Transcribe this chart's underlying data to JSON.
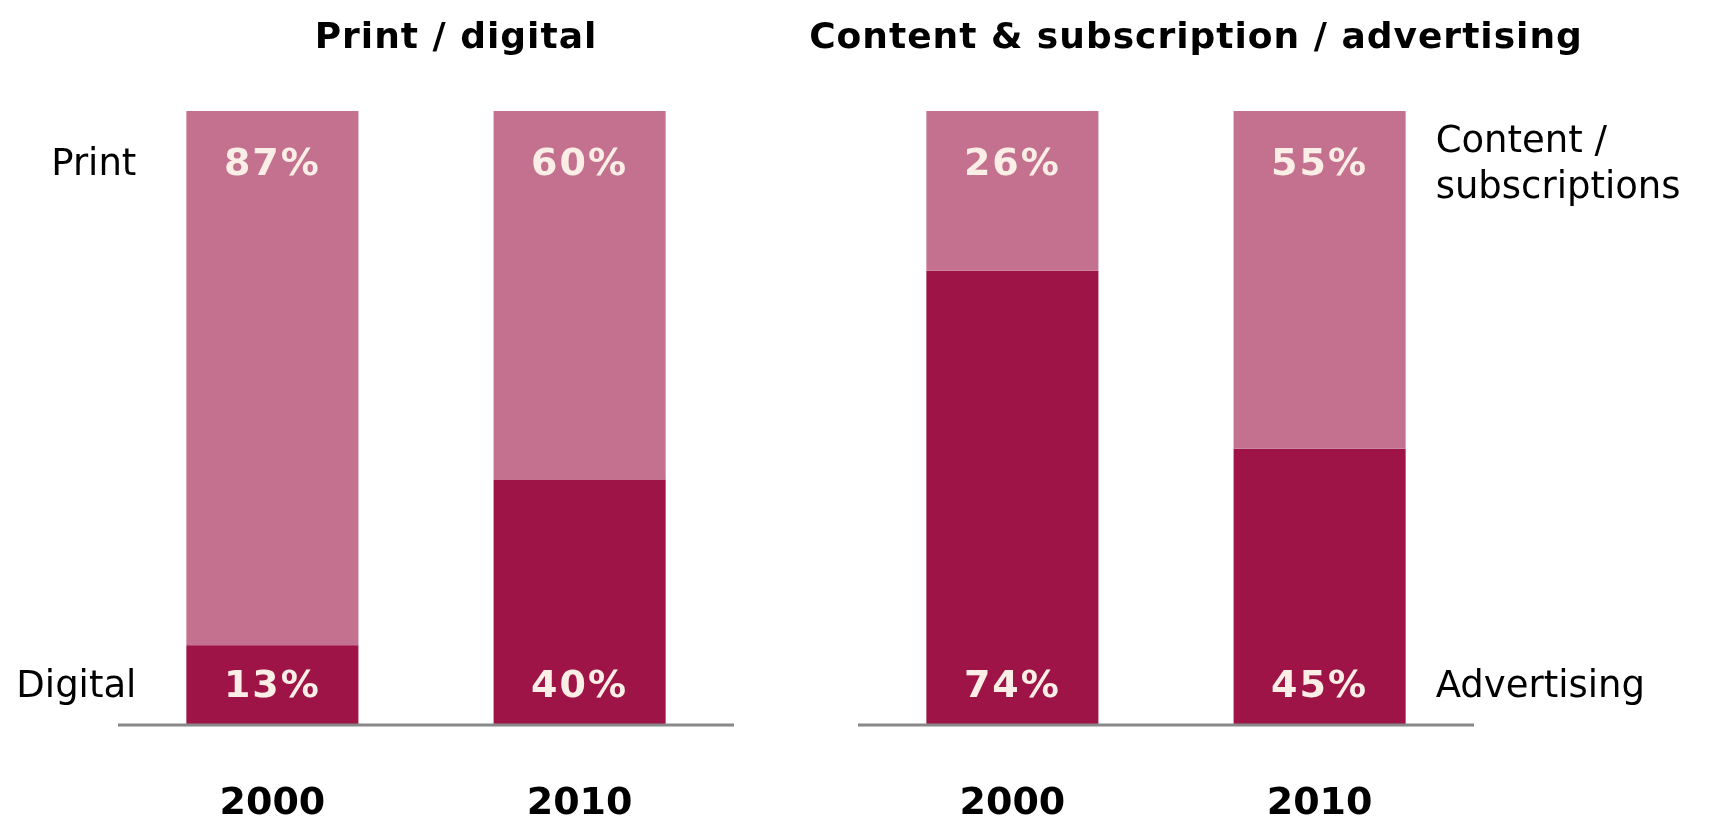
{
  "chart_data": [
    {
      "type": "bar",
      "title": "Print / digital",
      "categories": [
        "2000",
        "2010"
      ],
      "stacked": true,
      "ylim": [
        0,
        100
      ],
      "tick_labels": "x",
      "series": [
        {
          "name": "Digital",
          "color": "#9e1447",
          "values": [
            13,
            40
          ],
          "value_labels": [
            "13%",
            "40%"
          ]
        },
        {
          "name": "Print",
          "color": "#c4718f",
          "values": [
            87,
            60
          ],
          "value_labels": [
            "87%",
            "60%"
          ]
        }
      ]
    },
    {
      "type": "bar",
      "title": "Content & subscription / advertising",
      "categories": [
        "2000",
        "2010"
      ],
      "stacked": true,
      "ylim": [
        0,
        100
      ],
      "tick_labels": "x",
      "series": [
        {
          "name": "Advertising",
          "color": "#9e1447",
          "values": [
            74,
            45
          ],
          "value_labels": [
            "74%",
            "45%"
          ]
        },
        {
          "name": "Content / subscriptions",
          "color": "#c4718f",
          "values": [
            26,
            55
          ],
          "value_labels": [
            "26%",
            "55%"
          ]
        }
      ]
    }
  ]
}
